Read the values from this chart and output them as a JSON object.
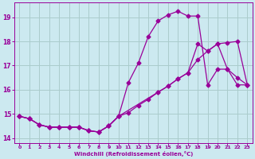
{
  "xlabel": "Windchill (Refroidissement éolien,°C)",
  "xlim": [
    -0.5,
    23.5
  ],
  "ylim": [
    13.8,
    19.6
  ],
  "yticks": [
    14,
    15,
    16,
    17,
    18,
    19
  ],
  "xticks": [
    0,
    1,
    2,
    3,
    4,
    5,
    6,
    7,
    8,
    9,
    10,
    11,
    12,
    13,
    14,
    15,
    16,
    17,
    18,
    19,
    20,
    21,
    22,
    23
  ],
  "bg_color": "#cce9f0",
  "grid_color": "#aacccc",
  "line_color": "#990099",
  "line1_x": [
    0,
    1,
    2,
    3,
    4,
    5,
    6,
    7,
    8,
    9,
    10,
    11,
    12,
    13,
    14,
    15,
    16,
    17,
    18,
    19,
    20,
    21,
    22,
    23
  ],
  "line1_y": [
    14.9,
    14.8,
    14.55,
    14.45,
    14.45,
    14.45,
    14.45,
    14.3,
    14.25,
    14.5,
    14.9,
    16.3,
    17.1,
    18.2,
    18.85,
    19.1,
    19.25,
    19.05,
    19.05,
    16.2,
    16.85,
    16.85,
    16.2,
    16.2
  ],
  "line2_x": [
    0,
    1,
    2,
    3,
    4,
    5,
    6,
    7,
    8,
    9,
    10,
    11,
    12,
    13,
    14,
    15,
    16,
    17,
    18,
    19,
    20,
    21,
    22,
    23
  ],
  "line2_y": [
    14.9,
    14.8,
    14.55,
    14.45,
    14.45,
    14.45,
    14.45,
    14.3,
    14.25,
    14.5,
    14.9,
    15.05,
    15.35,
    15.6,
    15.9,
    16.15,
    16.45,
    16.7,
    17.25,
    17.6,
    17.9,
    17.95,
    18.0,
    16.2
  ],
  "line3_x": [
    0,
    1,
    2,
    3,
    4,
    5,
    6,
    7,
    8,
    9,
    10,
    14,
    15,
    16,
    17,
    18,
    19,
    20,
    21,
    22,
    23
  ],
  "line3_y": [
    14.9,
    14.8,
    14.55,
    14.45,
    14.45,
    14.45,
    14.45,
    14.3,
    14.25,
    14.5,
    14.9,
    15.9,
    16.15,
    16.45,
    16.7,
    17.9,
    17.6,
    17.9,
    16.85,
    16.5,
    16.2
  ]
}
